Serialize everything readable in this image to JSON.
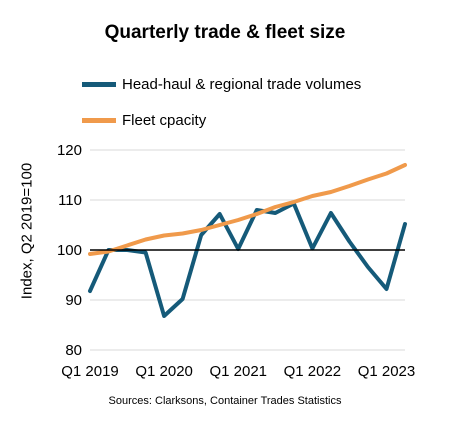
{
  "chart_data": {
    "type": "line",
    "title": "Quarterly trade & fleet size",
    "ylabel": "Index, Q2 2019=100",
    "xlabel": "",
    "ylim": [
      80,
      120
    ],
    "yticks": [
      80,
      90,
      100,
      110,
      120
    ],
    "reference_line": 100,
    "grid": true,
    "legend_position": "top",
    "x": [
      "Q1 2019",
      "Q2 2019",
      "Q3 2019",
      "Q4 2019",
      "Q1 2020",
      "Q2 2020",
      "Q3 2020",
      "Q4 2020",
      "Q1 2021",
      "Q2 2021",
      "Q3 2021",
      "Q4 2021",
      "Q1 2022",
      "Q2 2022",
      "Q3 2022",
      "Q4 2022",
      "Q1 2023",
      "Q2 2023"
    ],
    "xtick_labels": [
      {
        "index": 0,
        "label": "Q1 2019"
      },
      {
        "index": 4,
        "label": "Q1 2020"
      },
      {
        "index": 8,
        "label": "Q1 2021"
      },
      {
        "index": 12,
        "label": "Q1 2022"
      },
      {
        "index": 16,
        "label": "Q1 2023"
      }
    ],
    "series": [
      {
        "name": "Head-haul & regional trade volumes",
        "color": "#155a79",
        "values": [
          91.8,
          100,
          100,
          99.5,
          86.8,
          90.2,
          103,
          107.2,
          100.2,
          108,
          107.4,
          109.3,
          100.3,
          107.4,
          101.7,
          96.6,
          92.2,
          105.2
        ]
      },
      {
        "name": "Fleet cpacity",
        "color": "#f09a4b",
        "values": [
          99.2,
          99.7,
          100.9,
          102.1,
          102.9,
          103.3,
          104.0,
          105.0,
          106.0,
          107.2,
          108.6,
          109.6,
          110.8,
          111.6,
          112.8,
          114.1,
          115.3,
          117.0
        ]
      }
    ],
    "source": "Sources: Clarksons, Container Trades Statistics"
  }
}
